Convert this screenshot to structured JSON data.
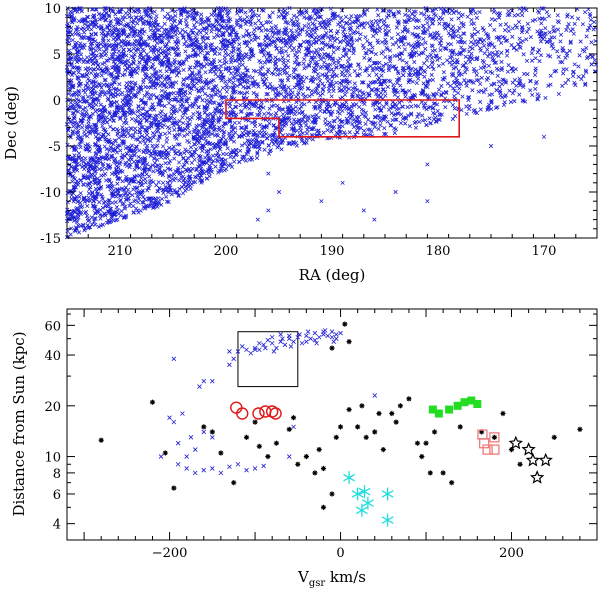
{
  "chart_data": [
    {
      "type": "scatter",
      "xlabel": "RA (deg)",
      "ylabel": "Dec (deg)",
      "xlim": [
        215,
        165
      ],
      "ylim": [
        -15,
        10
      ],
      "x_ticks": [
        210,
        200,
        190,
        180,
        170
      ],
      "y_ticks": [
        -15,
        -10,
        -5,
        0,
        5,
        10
      ],
      "grid": false,
      "density_model": {
        "n_points": 5200,
        "x_range": [
          165,
          215
        ],
        "y_range": [
          -15,
          10
        ],
        "lower_edge": [
          [
            215,
            -15
          ],
          [
            205,
            -11
          ],
          [
            199,
            -7
          ],
          [
            192,
            -4.5
          ],
          [
            185,
            -4
          ],
          [
            178,
            -2
          ],
          [
            170,
            0
          ],
          [
            165,
            2
          ]
        ],
        "sparse_tail_points": [
          [
            196,
            -8
          ],
          [
            195,
            -10
          ],
          [
            191,
            -11
          ],
          [
            189,
            -9
          ],
          [
            187,
            -12
          ],
          [
            184,
            -10
          ],
          [
            181,
            -11
          ],
          [
            181,
            -7
          ],
          [
            186,
            -13
          ],
          [
            196,
            -12
          ],
          [
            197,
            -13
          ],
          [
            175,
            -5
          ],
          [
            170,
            -4
          ]
        ]
      },
      "marker": "x",
      "marker_color": "#1f1fd6",
      "annotations": [
        {
          "type": "polygon",
          "color": "#e01818",
          "points": [
            [
              200,
              0
            ],
            [
              178,
              0
            ],
            [
              178,
              -4
            ],
            [
              195,
              -4
            ],
            [
              195,
              -2
            ],
            [
              200,
              -2
            ]
          ]
        }
      ]
    },
    {
      "type": "scatter",
      "xlabel_main": "V",
      "xlabel_sub": "gsr",
      "xlabel_unit": " km/s",
      "ylabel": "Distance from Sun (kpc)",
      "xlim": [
        -320,
        300
      ],
      "ylim": [
        3.2,
        75
      ],
      "yscale": "log",
      "x_ticks": [
        -200,
        0,
        200
      ],
      "x_minor_step": 20,
      "y_ticks": [
        4,
        6,
        8,
        10,
        20,
        40,
        60
      ],
      "grid": false,
      "box": {
        "x": [
          -120,
          -50
        ],
        "y": [
          26,
          55
        ],
        "color": "#000000"
      },
      "series": [
        {
          "marker": "x",
          "color": "#1f1fd6",
          "points": [
            [
              -195,
              38
            ],
            [
              -150,
              28
            ],
            [
              -120,
              42
            ],
            [
              -110,
              43
            ],
            [
              -100,
              44
            ],
            [
              -90,
              46
            ],
            [
              -80,
              47
            ],
            [
              -70,
              48
            ],
            [
              -60,
              50
            ],
            [
              -50,
              51
            ],
            [
              -40,
              52
            ],
            [
              -30,
              54
            ],
            [
              -20,
              53
            ],
            [
              -10,
              55
            ],
            [
              0,
              54
            ],
            [
              -115,
              45
            ],
            [
              -105,
              41
            ],
            [
              -95,
              43
            ],
            [
              -85,
              49
            ],
            [
              -75,
              44
            ],
            [
              -65,
              46
            ],
            [
              -55,
              48
            ],
            [
              -45,
              47
            ],
            [
              -35,
              50
            ],
            [
              -25,
              51
            ],
            [
              -15,
              52
            ],
            [
              -5,
              50
            ],
            [
              -125,
              38
            ],
            [
              -130,
              35
            ],
            [
              -130,
              42
            ],
            [
              -160,
              28
            ],
            [
              -165,
              26
            ],
            [
              -200,
              17
            ],
            [
              -195,
              16
            ],
            [
              -185,
              18
            ],
            [
              -175,
              13
            ],
            [
              -160,
              14
            ],
            [
              -150,
              13
            ],
            [
              -170,
              11
            ],
            [
              -190,
              12
            ],
            [
              -180,
              10
            ],
            [
              -210,
              10
            ],
            [
              -190,
              9
            ],
            [
              -180,
              8.5
            ],
            [
              -170,
              8
            ],
            [
              -160,
              8.3
            ],
            [
              -150,
              8.5
            ],
            [
              -140,
              8
            ],
            [
              -130,
              8.7
            ],
            [
              -120,
              9
            ],
            [
              -110,
              8.3
            ],
            [
              -100,
              8.5
            ],
            [
              -90,
              8.8
            ],
            [
              -60,
              10
            ],
            [
              -55,
              15
            ],
            [
              40,
              23
            ],
            [
              -100,
              43
            ],
            [
              -80,
              51
            ],
            [
              -70,
              53
            ],
            [
              -60,
              52
            ],
            [
              -40,
              48
            ],
            [
              -30,
              49
            ],
            [
              -20,
              55
            ],
            [
              -10,
              51
            ],
            [
              -5,
              53
            ],
            [
              -95,
              47
            ],
            [
              -88,
              44
            ],
            [
              -78,
              42
            ],
            [
              -68,
              50
            ],
            [
              -58,
              45
            ],
            [
              -48,
              53
            ],
            [
              -38,
              55
            ],
            [
              -28,
              47
            ],
            [
              -18,
              56
            ],
            [
              -8,
              48
            ]
          ]
        },
        {
          "marker": "asterisk",
          "color": "#000000",
          "points": [
            [
              -280,
              12.5
            ],
            [
              -220,
              21
            ],
            [
              -205,
              10.5
            ],
            [
              -195,
              6.5
            ],
            [
              -160,
              15
            ],
            [
              -150,
              14
            ],
            [
              -140,
              10.5
            ],
            [
              -125,
              7
            ],
            [
              -110,
              13
            ],
            [
              -100,
              16
            ],
            [
              -95,
              11.5
            ],
            [
              -85,
              10
            ],
            [
              -75,
              12
            ],
            [
              -60,
              14.5
            ],
            [
              -55,
              17
            ],
            [
              -50,
              9
            ],
            [
              -40,
              10
            ],
            [
              -30,
              8
            ],
            [
              -25,
              11
            ],
            [
              -20,
              8.5
            ],
            [
              -10,
              6
            ],
            [
              -5,
              13
            ],
            [
              0,
              15
            ],
            [
              10,
              19
            ],
            [
              20,
              15
            ],
            [
              25,
              20
            ],
            [
              30,
              13
            ],
            [
              40,
              14
            ],
            [
              45,
              18
            ],
            [
              50,
              11
            ],
            [
              60,
              18
            ],
            [
              65,
              16
            ],
            [
              70,
              20
            ],
            [
              80,
              22
            ],
            [
              90,
              12
            ],
            [
              95,
              10
            ],
            [
              100,
              12
            ],
            [
              105,
              8
            ],
            [
              110,
              14
            ],
            [
              120,
              8
            ],
            [
              130,
              7
            ],
            [
              140,
              15
            ],
            [
              165,
              14
            ],
            [
              180,
              13
            ],
            [
              190,
              18
            ],
            [
              200,
              11
            ],
            [
              210,
              9
            ],
            [
              250,
              13
            ],
            [
              280,
              14.5
            ],
            [
              -20,
              5
            ],
            [
              5,
              61
            ],
            [
              -10,
              44
            ],
            [
              10,
              48
            ]
          ]
        },
        {
          "marker": "open-circle",
          "color": "#e01818",
          "points": [
            [
              -122,
              19.5
            ],
            [
              -115,
              18
            ],
            [
              -96,
              18
            ],
            [
              -88,
              18.5
            ],
            [
              -80,
              18.5
            ],
            [
              -76,
              18
            ]
          ]
        },
        {
          "marker": "filled-square",
          "color": "#22dd22",
          "points": [
            [
              108,
              19
            ],
            [
              115,
              18
            ],
            [
              127,
              19
            ],
            [
              137,
              20
            ],
            [
              145,
              21
            ],
            [
              153,
              21.5
            ],
            [
              160,
              20.5
            ]
          ]
        },
        {
          "marker": "open-square",
          "color": "#f07c7c",
          "points": [
            [
              166,
              13.5
            ],
            [
              168,
              12
            ],
            [
              172,
              11
            ],
            [
              180,
              11
            ],
            [
              180,
              13
            ]
          ]
        },
        {
          "marker": "open-star",
          "color": "#000000",
          "points": [
            [
              205,
              12
            ],
            [
              220,
              11
            ],
            [
              225,
              9.5
            ],
            [
              240,
              9.5
            ],
            [
              230,
              7.5
            ]
          ]
        },
        {
          "marker": "asterisk-star",
          "color": "#22dddd",
          "points": [
            [
              10,
              7.5
            ],
            [
              20,
              6
            ],
            [
              28,
              6.2
            ],
            [
              32,
              5.3
            ],
            [
              25,
              4.8
            ],
            [
              55,
              6
            ],
            [
              55,
              4.2
            ]
          ]
        }
      ]
    }
  ]
}
